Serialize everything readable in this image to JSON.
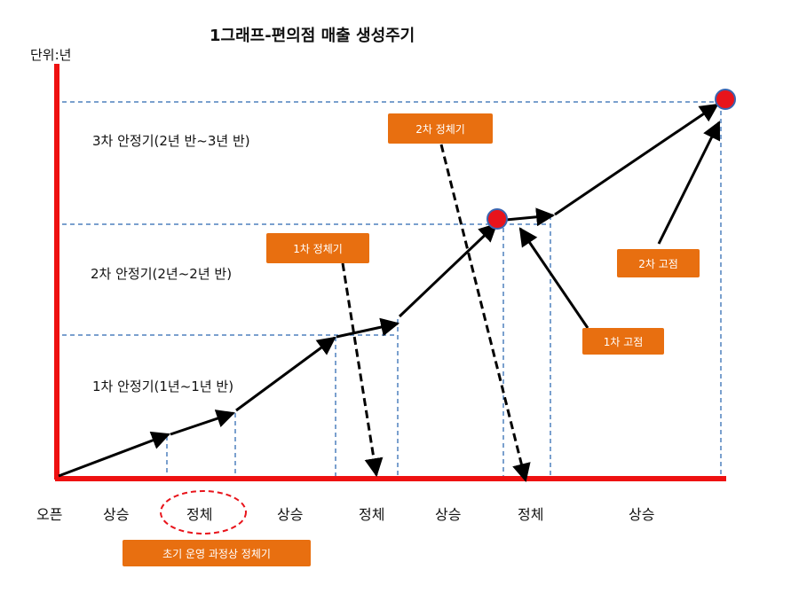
{
  "title": "1그래프-편의점 매출 생성주기",
  "unit_label": "단위:년",
  "bands": [
    {
      "label": "3차 안정기(2년 반~3년 반)"
    },
    {
      "label": "2차 안정기(2년~2년 반)"
    },
    {
      "label": "1차 안정기(1년~1년 반)"
    }
  ],
  "x_labels": [
    "오픈",
    "상승",
    "정체",
    "상승",
    "정체",
    "상승",
    "정체",
    "상승"
  ],
  "callouts": {
    "stagnation_1": "1차 정체기",
    "stagnation_2": "2차 정체기",
    "fix_1": "1차 고점",
    "fix_2": "2차 고점",
    "initial": "초기 운영 과정상  정체기"
  },
  "colors": {
    "axis": "#ee1111",
    "guide": "#4f81bd",
    "tag": "#e86f10",
    "point": "#e8141b"
  }
}
